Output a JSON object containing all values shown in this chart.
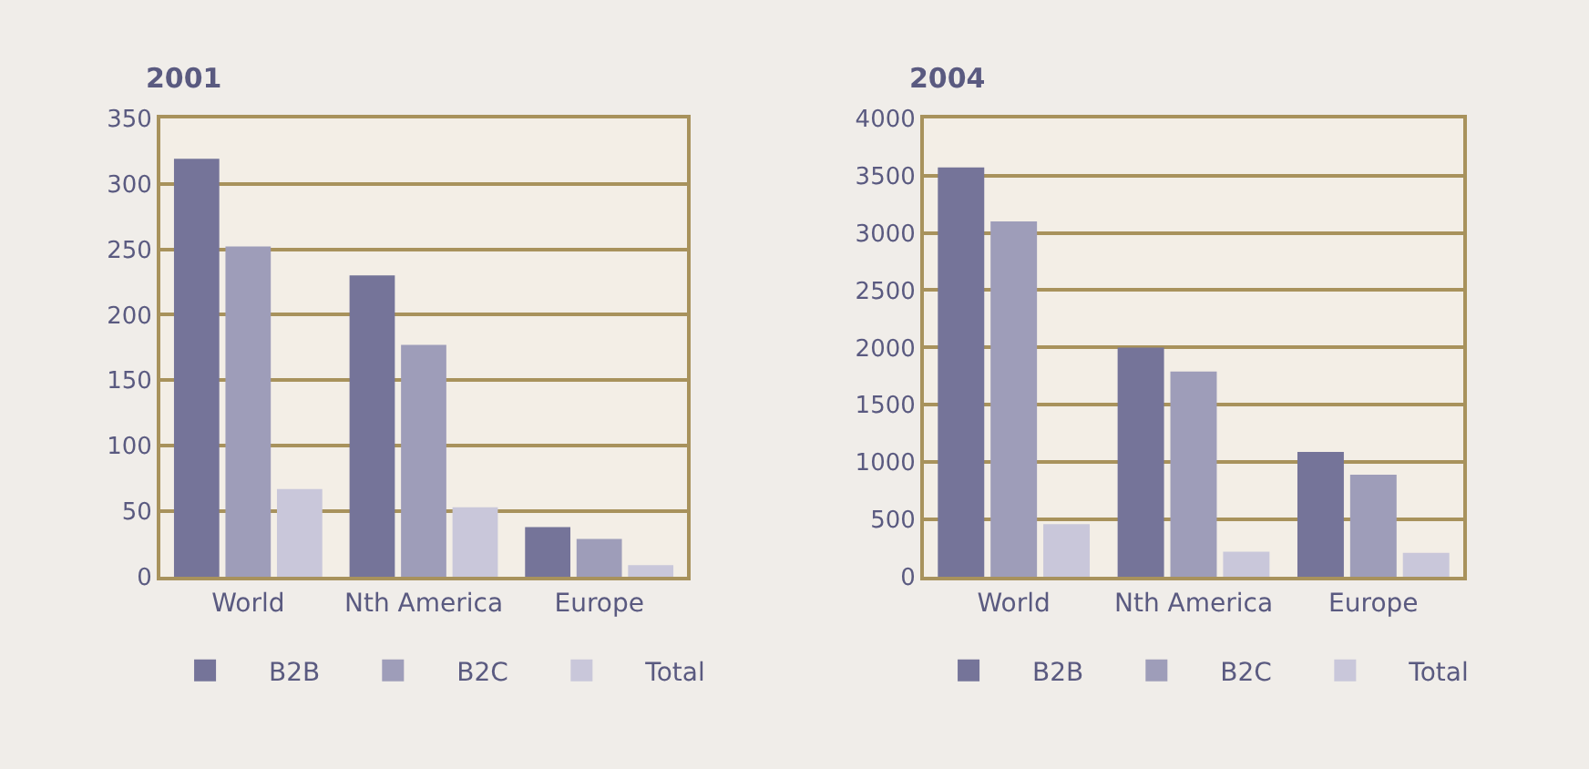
{
  "chart_data": [
    {
      "type": "bar",
      "title": "2001",
      "categories": [
        "World",
        "Nth America",
        "Europe"
      ],
      "series": [
        {
          "name": "B2B",
          "color": "#757499",
          "values": [
            319,
            230,
            38
          ]
        },
        {
          "name": "B2C",
          "color": "#9e9db9",
          "values": [
            252,
            177,
            29
          ]
        },
        {
          "name": "Total",
          "color": "#c9c7da",
          "values": [
            67,
            53,
            9
          ]
        }
      ],
      "ylim": [
        0,
        350
      ],
      "yticks": [
        0,
        50,
        100,
        150,
        200,
        250,
        300,
        350
      ],
      "grid": "y",
      "legend": "bottom"
    },
    {
      "type": "bar",
      "title": "2004",
      "categories": [
        "World",
        "Nth America",
        "Europe"
      ],
      "series": [
        {
          "name": "B2B",
          "color": "#757499",
          "values": [
            3570,
            2000,
            1090
          ]
        },
        {
          "name": "B2C",
          "color": "#9e9db9",
          "values": [
            3100,
            1790,
            890
          ]
        },
        {
          "name": "Total",
          "color": "#c9c7da",
          "values": [
            460,
            220,
            210
          ]
        }
      ],
      "ylim": [
        0,
        4000
      ],
      "yticks": [
        0,
        500,
        1000,
        1500,
        2000,
        2500,
        3000,
        3500,
        4000
      ],
      "grid": "y",
      "legend": "bottom"
    }
  ]
}
